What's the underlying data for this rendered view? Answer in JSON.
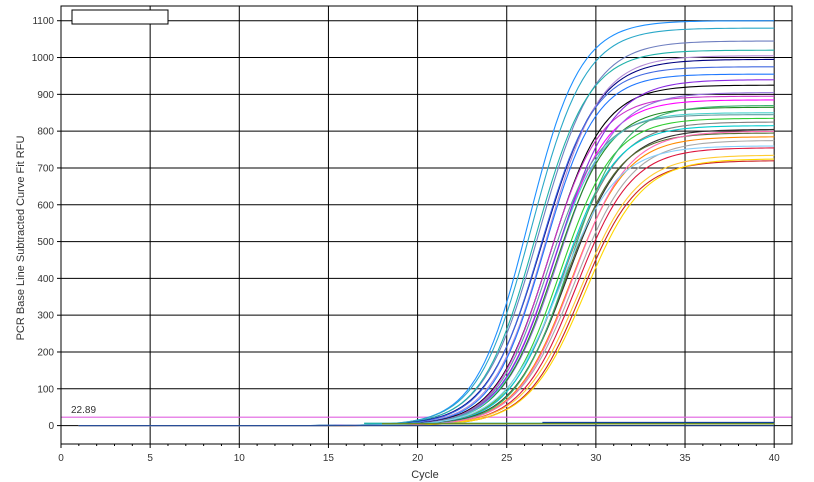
{
  "chart_data": {
    "type": "line",
    "title": "",
    "xlabel": "Cycle",
    "ylabel": "PCR Base Line Subtracted Curve Fit RFU",
    "xlim": [
      0,
      41
    ],
    "ylim": [
      -50,
      1140
    ],
    "x_ticks": [
      0,
      5,
      10,
      15,
      20,
      25,
      30,
      35,
      40
    ],
    "y_ticks": [
      0,
      100,
      200,
      300,
      400,
      500,
      600,
      700,
      800,
      900,
      1000,
      1100
    ],
    "grid": true,
    "legend": "top-left (empty box)",
    "threshold": {
      "value": 22.89,
      "label": "22.89",
      "color": "#e060e0"
    },
    "curve_model": "sigmoid: y = plateau / (1 + exp(-(cycle - midpoint) / slope)), cycles 1–40",
    "series": [
      {
        "color": "#1e90ff",
        "plateau": 1100,
        "midpoint": 26.2,
        "slope": 1.45
      },
      {
        "color": "#2aa8c8",
        "plateau": 1080,
        "midpoint": 26.4,
        "slope": 1.5
      },
      {
        "color": "#6f7fc0",
        "plateau": 1045,
        "midpoint": 26.8,
        "slope": 1.55
      },
      {
        "color": "#20b2aa",
        "plateau": 1020,
        "midpoint": 26.6,
        "slope": 1.5
      },
      {
        "color": "#000080",
        "plateau": 995,
        "midpoint": 27.0,
        "slope": 1.55
      },
      {
        "color": "#b38bd6",
        "plateau": 1005,
        "midpoint": 27.2,
        "slope": 1.5
      },
      {
        "color": "#1f77ff",
        "plateau": 955,
        "midpoint": 27.1,
        "slope": 1.45
      },
      {
        "color": "#000000",
        "plateau": 925,
        "midpoint": 27.4,
        "slope": 1.5
      },
      {
        "color": "#cc33cc",
        "plateau": 895,
        "midpoint": 27.3,
        "slope": 1.45
      },
      {
        "color": "#ff00ff",
        "plateau": 885,
        "midpoint": 27.6,
        "slope": 1.5
      },
      {
        "color": "#9370db",
        "plateau": 905,
        "midpoint": 27.9,
        "slope": 1.55
      },
      {
        "color": "#228b22",
        "plateau": 865,
        "midpoint": 27.7,
        "slope": 1.5
      },
      {
        "color": "#48d1cc",
        "plateau": 850,
        "midpoint": 27.5,
        "slope": 1.45
      },
      {
        "color": "#32cd32",
        "plateau": 835,
        "midpoint": 28.0,
        "slope": 1.5
      },
      {
        "color": "#808080",
        "plateau": 825,
        "midpoint": 28.2,
        "slope": 1.55
      },
      {
        "color": "#00ced1",
        "plateau": 815,
        "midpoint": 28.1,
        "slope": 1.5
      },
      {
        "color": "#2f2f2f",
        "plateau": 805,
        "midpoint": 28.4,
        "slope": 1.55
      },
      {
        "color": "#556b2f",
        "plateau": 795,
        "midpoint": 28.3,
        "slope": 1.5
      },
      {
        "color": "#ff8c00",
        "plateau": 785,
        "midpoint": 28.6,
        "slope": 1.55
      },
      {
        "color": "#a9a9a9",
        "plateau": 775,
        "midpoint": 28.8,
        "slope": 1.6
      },
      {
        "color": "#dc143c",
        "plateau": 755,
        "midpoint": 28.9,
        "slope": 1.55
      },
      {
        "color": "#ffcc33",
        "plateau": 735,
        "midpoint": 29.1,
        "slope": 1.6
      },
      {
        "color": "#cc2222",
        "plateau": 720,
        "midpoint": 29.2,
        "slope": 1.55
      },
      {
        "color": "#ffd700",
        "plateau": 725,
        "midpoint": 29.4,
        "slope": 1.6
      },
      {
        "color": "#4169e1",
        "plateau": 975,
        "midpoint": 26.9,
        "slope": 1.5
      },
      {
        "color": "#8a2be2",
        "plateau": 940,
        "midpoint": 27.8,
        "slope": 1.55
      },
      {
        "color": "#3cb371",
        "plateau": 870,
        "midpoint": 28.5,
        "slope": 1.5
      },
      {
        "color": "#ff69b4",
        "plateau": 800,
        "midpoint": 28.7,
        "slope": 1.55
      },
      {
        "color": "#5f9ea0",
        "plateau": 845,
        "midpoint": 27.3,
        "slope": 1.45
      },
      {
        "color": "#87cefa",
        "plateau": 760,
        "midpoint": 28.0,
        "slope": 1.6
      }
    ],
    "flat_series": [
      {
        "color": "#00008b",
        "values_from_cycle": 27,
        "level": 8
      },
      {
        "color": "#20b2aa",
        "values_from_cycle": 17,
        "level": 6
      },
      {
        "color": "#6b8e23",
        "values_from_cycle": 18,
        "level": 5
      }
    ]
  }
}
